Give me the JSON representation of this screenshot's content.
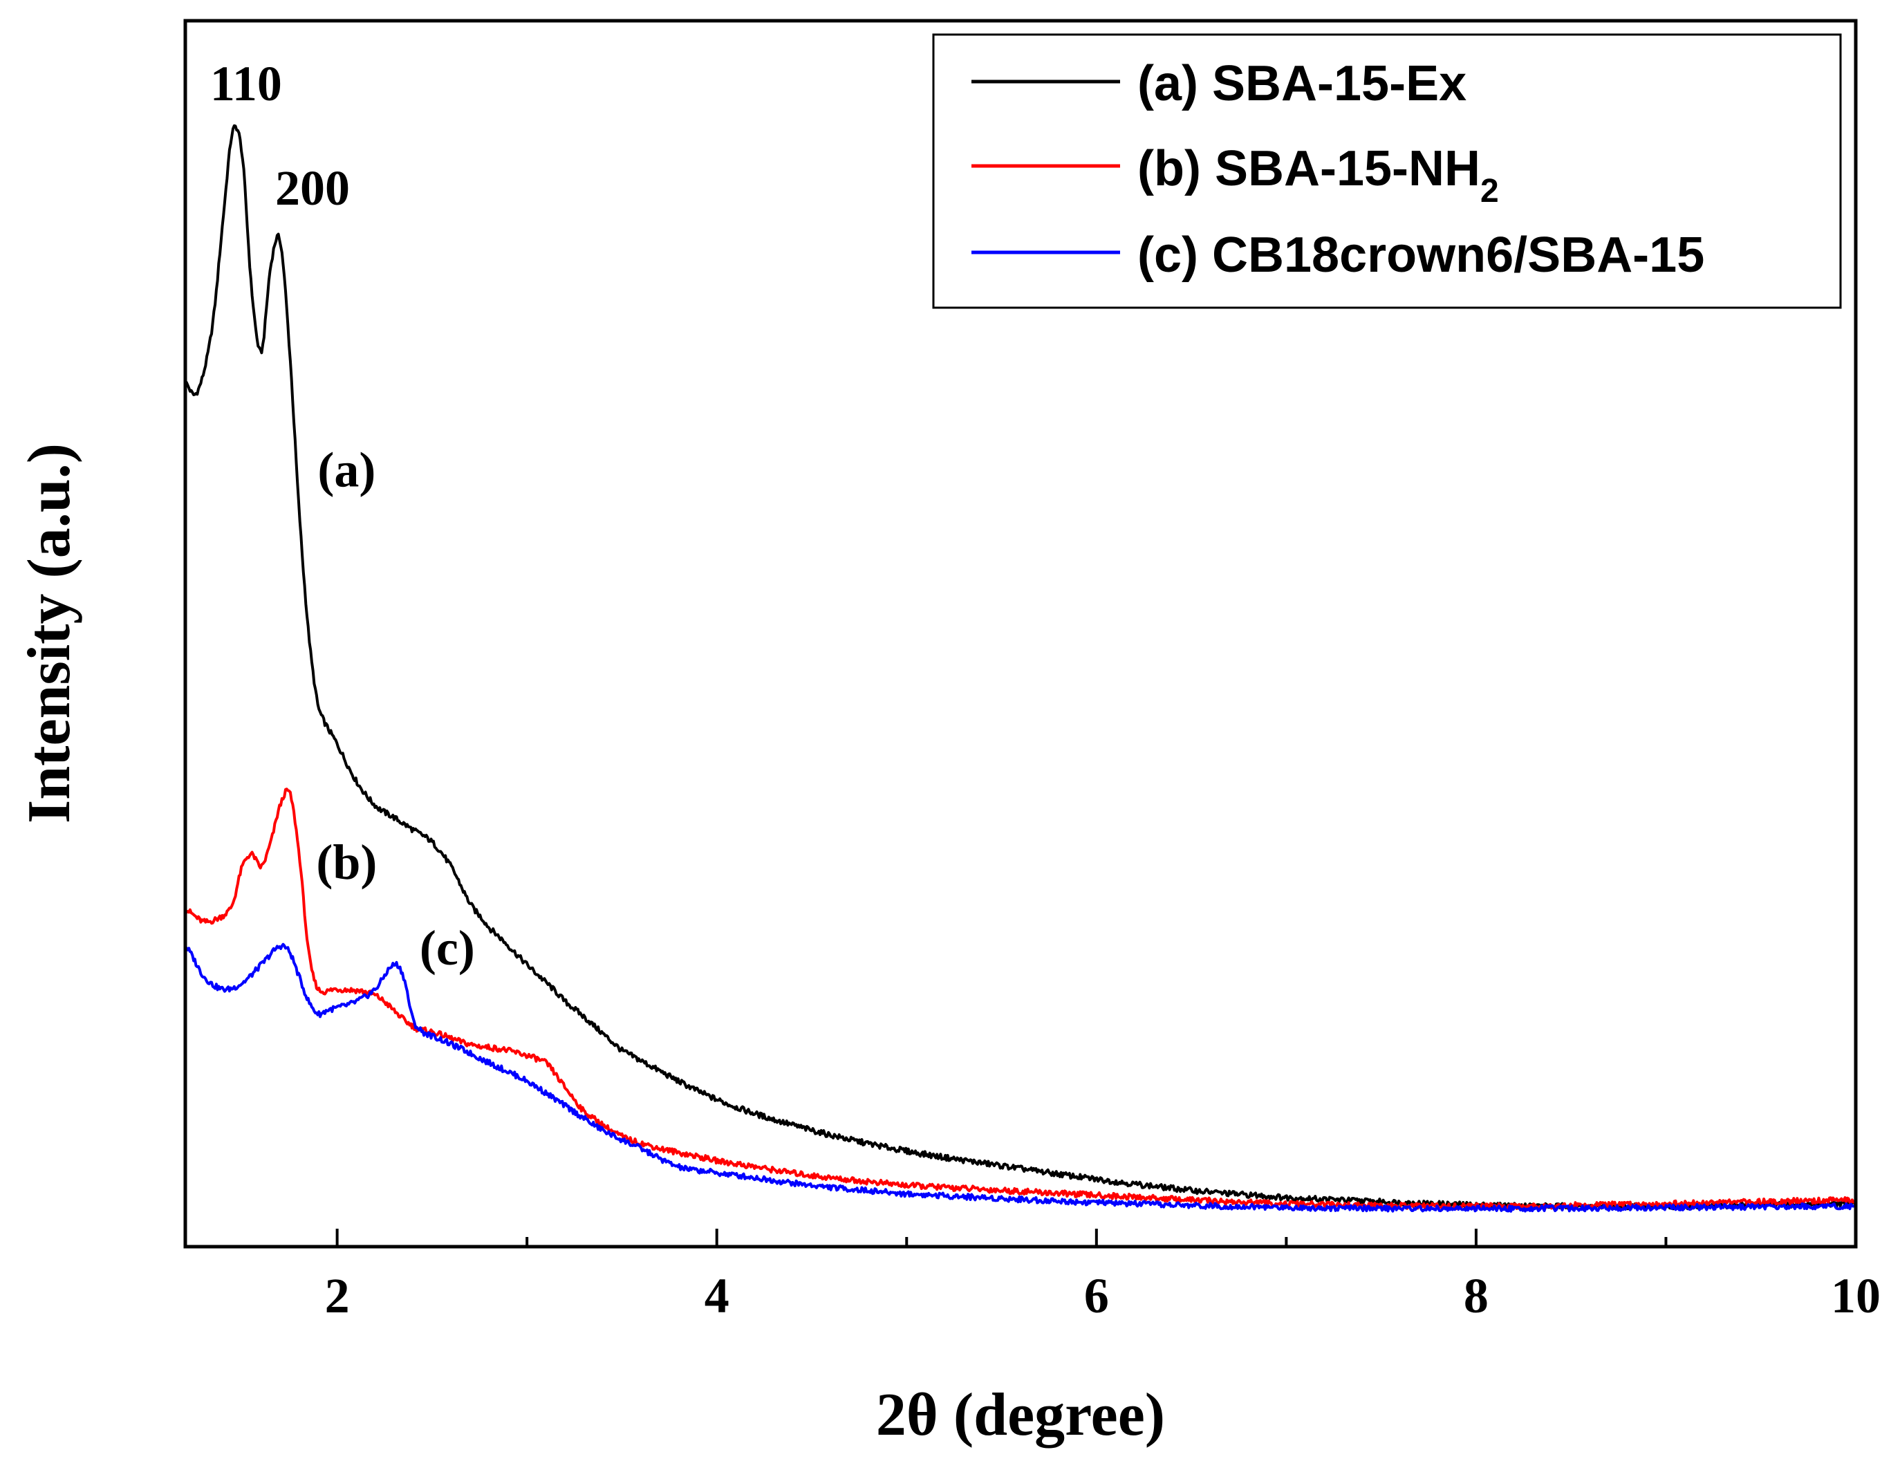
{
  "chart_data": {
    "type": "line",
    "title": "",
    "xlabel": "2θ (degree)",
    "ylabel": "Intensity (a.u.)",
    "xlim": [
      1.2,
      10
    ],
    "ylim": [
      0,
      100
    ],
    "x_ticks": [
      2,
      4,
      6,
      8,
      10
    ],
    "x_minor_ticks": [
      3,
      5,
      7,
      9
    ],
    "y_ticks_shown": false,
    "grid": false,
    "legend_position": "top-right",
    "series": [
      {
        "name": "(a) SBA-15-Ex",
        "label_text": "SBA-15-Ex",
        "color": "#000000",
        "curve_label": "(a)",
        "x": [
          1.2,
          1.25,
          1.3,
          1.35,
          1.4,
          1.45,
          1.5,
          1.55,
          1.6,
          1.65,
          1.7,
          1.75,
          1.8,
          1.85,
          1.9,
          2.0,
          2.1,
          2.2,
          2.3,
          2.4,
          2.5,
          2.6,
          2.7,
          2.8,
          3.0,
          3.2,
          3.5,
          4.0,
          4.5,
          5.0,
          5.5,
          6.0,
          6.5,
          7.0,
          8.0,
          9.0,
          10.0
        ],
        "y": [
          70.5,
          69.5,
          71.5,
          76,
          84,
          91,
          89,
          78,
          73,
          80,
          82,
          73,
          60,
          50,
          44,
          41,
          38,
          36,
          35,
          34,
          33,
          31,
          28,
          26,
          23,
          20,
          16,
          12,
          9.5,
          7.8,
          6.6,
          5.5,
          4.6,
          4.0,
          3.4,
          3.3,
          3.5
        ]
      },
      {
        "name": "(b) SBA-15-NH2",
        "label_text": "SBA-15-NH",
        "label_sub": "2",
        "color": "#ff0000",
        "curve_label": "(b)",
        "x": [
          1.2,
          1.3,
          1.4,
          1.45,
          1.5,
          1.55,
          1.6,
          1.65,
          1.7,
          1.75,
          1.8,
          1.85,
          1.9,
          2.0,
          2.2,
          2.4,
          2.5,
          2.7,
          2.9,
          3.1,
          3.2,
          3.3,
          3.5,
          3.7,
          4.0,
          4.5,
          5.0,
          6.0,
          7.0,
          8.0,
          9.0,
          10.0
        ],
        "y": [
          27.5,
          26.5,
          27,
          28,
          31,
          32,
          31,
          33,
          36,
          37,
          32,
          24,
          21,
          21,
          20.5,
          18,
          17.5,
          16.5,
          16,
          15,
          13,
          11,
          9,
          8,
          7,
          5.8,
          5.0,
          4.2,
          3.5,
          3.3,
          3.5,
          3.8
        ]
      },
      {
        "name": "(c) CB18crown6/SBA-15",
        "label_text": "CB18crown6/SBA-15",
        "color": "#0000ff",
        "curve_label": "(c)",
        "x": [
          1.2,
          1.3,
          1.4,
          1.5,
          1.6,
          1.7,
          1.75,
          1.8,
          1.85,
          1.9,
          1.95,
          2.0,
          2.1,
          2.2,
          2.3,
          2.35,
          2.4,
          2.45,
          2.6,
          2.8,
          3.0,
          3.2,
          3.4,
          3.6,
          3.8,
          4.0,
          4.5,
          5.0,
          6.0,
          7.0,
          8.0,
          9.0,
          10.0
        ],
        "y": [
          24.5,
          22,
          21,
          21.5,
          23,
          24.5,
          24,
          22,
          20,
          19,
          19.3,
          19.5,
          20,
          21,
          23,
          22,
          18.5,
          17.5,
          16.5,
          15,
          13.5,
          11.5,
          9.5,
          8,
          6.5,
          6.0,
          5.0,
          4.3,
          3.6,
          3.2,
          3.1,
          3.2,
          3.3
        ]
      }
    ],
    "annotations": [
      {
        "text": "110",
        "x": 1.52,
        "y": 93.5
      },
      {
        "text": "200",
        "x": 1.87,
        "y": 85
      },
      {
        "text": "(a)",
        "x": 2.05,
        "y": 62
      },
      {
        "text": "(b)",
        "x": 2.05,
        "y": 30
      },
      {
        "text": "(c)",
        "x": 2.58,
        "y": 23
      }
    ]
  }
}
